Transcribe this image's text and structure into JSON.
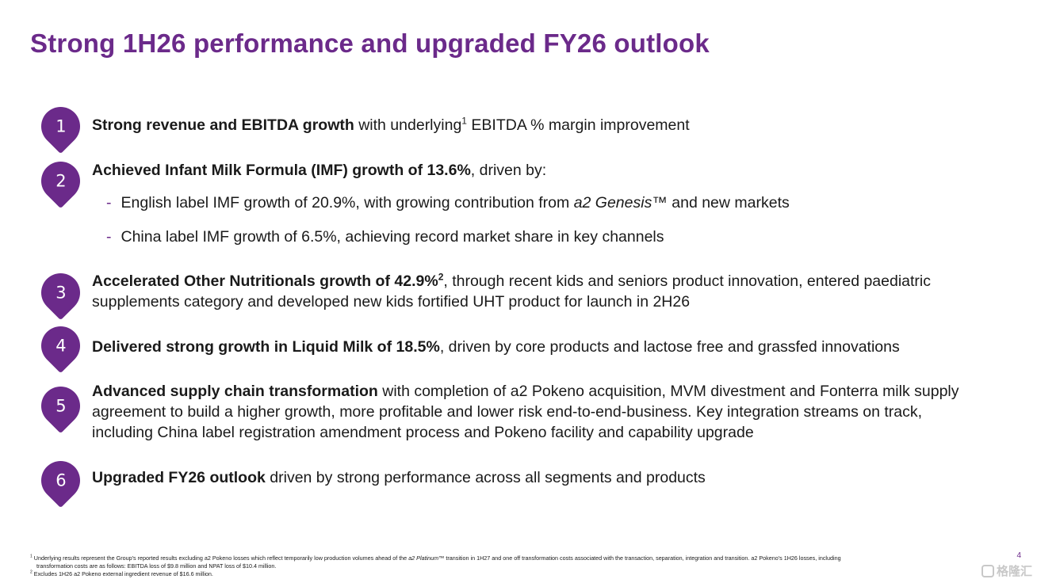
{
  "title": "Strong 1H26 performance and upgraded FY26 outlook",
  "items": [
    {
      "number": "1",
      "bold": "Strong revenue and EBITDA growth",
      "text_a": " with underlying",
      "sup": "1",
      "text_b": " EBITDA % margin improvement"
    },
    {
      "number": "2",
      "bold": "Achieved Infant Milk Formula (IMF) growth of 13.6%",
      "text": ", driven by:",
      "subs": [
        {
          "dash": "-",
          "text_a": "English label IMF growth of 20.9%, with growing contribution from ",
          "italic": "a2 Genesis",
          "text_b": "™ and new markets"
        },
        {
          "dash": "-",
          "text": "China label IMF growth of 6.5%, achieving record market share in key channels"
        }
      ]
    },
    {
      "number": "3",
      "bold": "Accelerated Other Nutritionals growth of 42.9%",
      "sup": "2",
      "text": ", through recent kids and seniors product innovation, entered paediatric supplements category and developed new kids fortified UHT product for launch in 2H26"
    },
    {
      "number": "4",
      "bold": "Delivered strong growth in Liquid Milk of 18.5%",
      "text": ", driven by core products and lactose free and grassfed innovations"
    },
    {
      "number": "5",
      "bold": "Advanced supply chain transformation",
      "text": " with completion of a2 Pokeno acquisition, MVM divestment and Fonterra milk supply agreement to build a higher growth, more profitable and lower risk end-to-end-business. Key integration streams on track, including China label registration amendment process and Pokeno facility and capability upgrade"
    },
    {
      "number": "6",
      "bold": "Upgraded FY26 outlook",
      "text": " driven by strong performance across all segments and products"
    }
  ],
  "footnotes": [
    {
      "mark": "1",
      "text_a": " Underlying results represent the Group's reported results excluding a2 Pokeno losses which reflect temporarily low production volumes ahead of the ",
      "italic": "a2 Platinum",
      "text_b": "™ transition in 1H27 and one off transformation costs associated with the transaction, separation, integration and transition. a2 Pokeno's 1H26 losses, including",
      "text_c": "transformation costs are as follows: EBITDA loss of $9.8 million and NPAT loss of $10.4 million."
    },
    {
      "mark": "2",
      "text": " Excludes 1H26 a2 Pokeno external ingredient revenue of $16.6 million."
    }
  ],
  "page_number": "4",
  "watermark": "格隆汇",
  "colors": {
    "accent": "#6b2a8a"
  }
}
